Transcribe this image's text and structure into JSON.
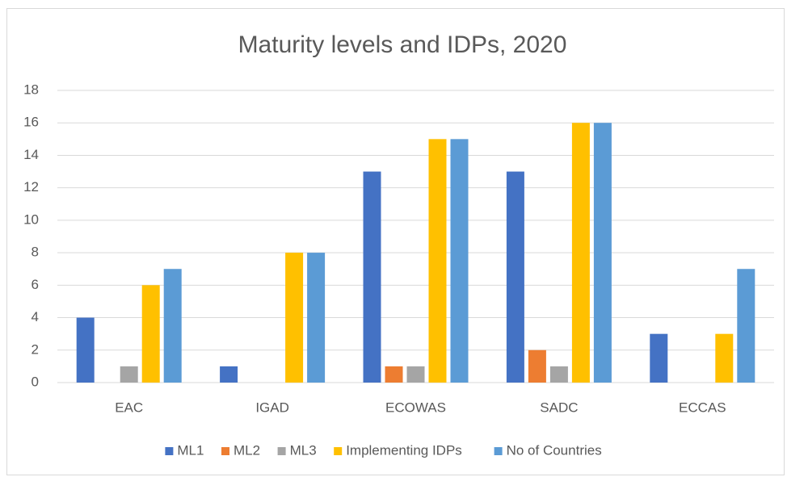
{
  "chart_data": {
    "type": "bar",
    "title": "Maturity levels and IDPs, 2020",
    "categories": [
      "EAC",
      "IGAD",
      "ECOWAS",
      "SADC",
      "ECCAS"
    ],
    "series": [
      {
        "name": "ML1",
        "color": "#4472c4",
        "values": [
          4,
          1,
          13,
          13,
          3
        ]
      },
      {
        "name": "ML2",
        "color": "#ed7d31",
        "values": [
          0,
          0,
          1,
          2,
          0
        ]
      },
      {
        "name": "ML3",
        "color": "#a5a5a5",
        "values": [
          1,
          0,
          1,
          1,
          0
        ]
      },
      {
        "name": "Implementing IDPs",
        "color": "#ffc000",
        "values": [
          6,
          8,
          15,
          16,
          3
        ]
      },
      {
        "name": "No of Countries",
        "color": "#5b9bd5",
        "values": [
          7,
          8,
          15,
          16,
          7
        ]
      }
    ],
    "ylim": [
      0,
      18
    ],
    "yticks": [
      0,
      2,
      4,
      6,
      8,
      10,
      12,
      14,
      16,
      18
    ],
    "grid": true,
    "legend": "bottom"
  }
}
